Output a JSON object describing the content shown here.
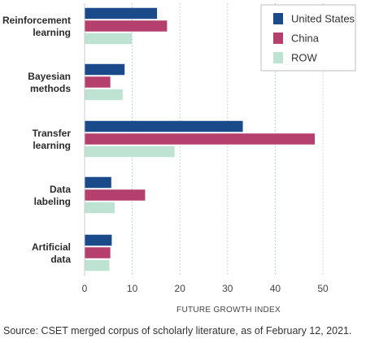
{
  "chart_data": {
    "type": "bar",
    "orientation": "horizontal",
    "categories": [
      [
        "Reinforcement",
        "learning"
      ],
      [
        "Bayesian",
        "methods"
      ],
      [
        "Transfer",
        "learning"
      ],
      [
        "Data",
        "labeling"
      ],
      [
        "Artificial",
        "data"
      ]
    ],
    "series": [
      {
        "name": "United States",
        "color": "#1a4a8a",
        "values": [
          15.2,
          8.4,
          33.2,
          5.6,
          5.7
        ]
      },
      {
        "name": "China",
        "color": "#b5406e",
        "values": [
          17.3,
          5.4,
          48.3,
          12.7,
          5.4
        ]
      },
      {
        "name": "ROW",
        "color": "#bfe3d3",
        "values": [
          9.9,
          8.0,
          18.9,
          6.3,
          5.2
        ]
      }
    ],
    "xlabel": "FUTURE GROWTH INDEX",
    "xlim": [
      0,
      50
    ],
    "xticks": [
      "0",
      "10",
      "20",
      "30",
      "40",
      "50"
    ],
    "grid": "vertical dotted",
    "legend_position": "top-right"
  },
  "source": "Source: CSET merged corpus of scholarly literature, as of February 12, 2021."
}
